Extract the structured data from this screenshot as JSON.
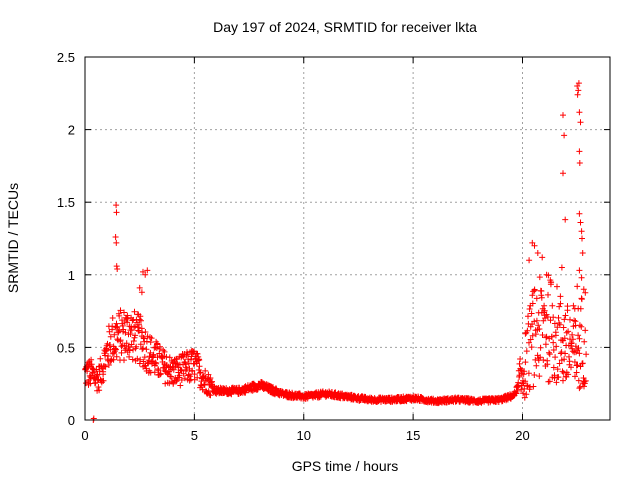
{
  "chart_data": {
    "type": "scatter",
    "title": "Day 197 of 2024, SRMTID for receiver lkta",
    "xlabel": "GPS time / hours",
    "ylabel": "SRMTID / TECUs",
    "xlim": [
      0,
      24
    ],
    "ylim": [
      0,
      2.5
    ],
    "xticks": [
      0,
      5,
      10,
      15,
      20
    ],
    "yticks": [
      0,
      0.5,
      1,
      1.5,
      2,
      2.5
    ],
    "ytick_labels": [
      "0",
      "0.5",
      "1",
      "1.5",
      "2",
      "2.5"
    ],
    "grid": true,
    "marker": "+",
    "color": "#ff0000",
    "profile": [
      [
        0.0,
        0.32
      ],
      [
        0.3,
        0.32
      ],
      [
        0.6,
        0.28
      ],
      [
        0.9,
        0.42
      ],
      [
        1.2,
        0.55
      ],
      [
        1.6,
        0.58
      ],
      [
        2.0,
        0.6
      ],
      [
        2.5,
        0.55
      ],
      [
        3.0,
        0.45
      ],
      [
        3.5,
        0.38
      ],
      [
        4.0,
        0.33
      ],
      [
        4.5,
        0.35
      ],
      [
        5.0,
        0.38
      ],
      [
        5.5,
        0.27
      ],
      [
        6.0,
        0.2
      ],
      [
        7.0,
        0.2
      ],
      [
        8.0,
        0.24
      ],
      [
        9.0,
        0.18
      ],
      [
        10.0,
        0.16
      ],
      [
        11.0,
        0.18
      ],
      [
        12.0,
        0.16
      ],
      [
        13.0,
        0.14
      ],
      [
        14.0,
        0.14
      ],
      [
        15.0,
        0.15
      ],
      [
        16.0,
        0.13
      ],
      [
        17.0,
        0.14
      ],
      [
        18.0,
        0.13
      ],
      [
        19.0,
        0.14
      ],
      [
        19.6,
        0.17
      ],
      [
        20.0,
        0.3
      ],
      [
        20.4,
        0.55
      ],
      [
        21.0,
        0.65
      ],
      [
        21.5,
        0.6
      ],
      [
        22.0,
        0.5
      ],
      [
        22.5,
        0.5
      ],
      [
        22.9,
        0.6
      ]
    ],
    "highlights": [
      {
        "x": 0.38,
        "y": 0.0
      },
      {
        "x": 0.4,
        "y": 0.01
      },
      {
        "x": 1.42,
        "y": 1.48
      },
      {
        "x": 1.44,
        "y": 1.43
      },
      {
        "x": 1.4,
        "y": 1.26
      },
      {
        "x": 1.43,
        "y": 1.22
      },
      {
        "x": 1.45,
        "y": 1.06
      },
      {
        "x": 1.47,
        "y": 1.04
      },
      {
        "x": 2.5,
        "y": 0.91
      },
      {
        "x": 2.6,
        "y": 0.88
      },
      {
        "x": 2.65,
        "y": 1.02
      },
      {
        "x": 2.75,
        "y": 1.0
      },
      {
        "x": 2.85,
        "y": 1.03
      },
      {
        "x": 20.3,
        "y": 1.1
      },
      {
        "x": 20.45,
        "y": 1.22
      },
      {
        "x": 20.55,
        "y": 1.2
      },
      {
        "x": 20.7,
        "y": 1.15
      },
      {
        "x": 20.9,
        "y": 1.12
      },
      {
        "x": 21.1,
        "y": 1.0
      },
      {
        "x": 21.3,
        "y": 0.95
      },
      {
        "x": 21.85,
        "y": 2.1
      },
      {
        "x": 21.9,
        "y": 1.96
      },
      {
        "x": 21.85,
        "y": 1.7
      },
      {
        "x": 21.95,
        "y": 1.38
      },
      {
        "x": 21.8,
        "y": 1.05
      },
      {
        "x": 22.5,
        "y": 2.3
      },
      {
        "x": 22.55,
        "y": 2.27
      },
      {
        "x": 22.58,
        "y": 2.32
      },
      {
        "x": 22.52,
        "y": 2.24
      },
      {
        "x": 22.6,
        "y": 2.12
      },
      {
        "x": 22.65,
        "y": 2.05
      },
      {
        "x": 22.6,
        "y": 1.85
      },
      {
        "x": 22.62,
        "y": 1.77
      },
      {
        "x": 22.6,
        "y": 1.42
      },
      {
        "x": 22.65,
        "y": 1.36
      },
      {
        "x": 22.7,
        "y": 1.3
      },
      {
        "x": 22.72,
        "y": 1.25
      },
      {
        "x": 22.75,
        "y": 1.15
      },
      {
        "x": 22.6,
        "y": 1.03
      },
      {
        "x": 22.7,
        "y": 0.98
      },
      {
        "x": 22.5,
        "y": 0.92
      },
      {
        "x": 22.8,
        "y": 0.9
      },
      {
        "x": 22.4,
        "y": 0.3
      },
      {
        "x": 22.6,
        "y": 0.22
      }
    ]
  }
}
